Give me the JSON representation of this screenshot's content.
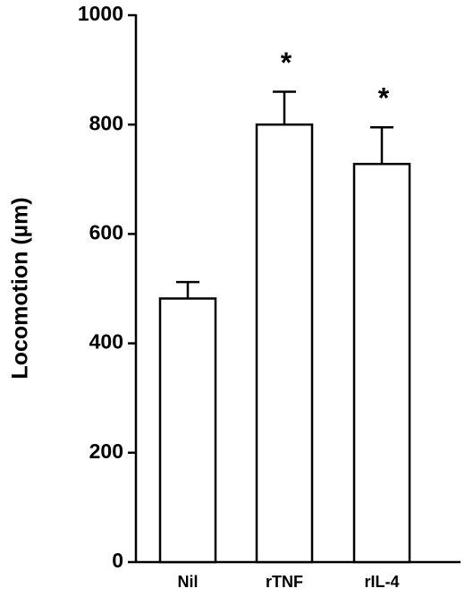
{
  "chart_data": {
    "type": "bar",
    "y_label": "Locomotion (µm)",
    "categories": [
      "Nil",
      "rTNF",
      "rIL-4"
    ],
    "values": [
      482,
      800,
      728
    ],
    "errors": [
      30,
      60,
      67
    ],
    "value_annotations": [
      null,
      "*",
      "*"
    ],
    "color": "#ffffff",
    "ylim": [
      0,
      1000
    ],
    "yticks": [
      0,
      200,
      400,
      600,
      800,
      1000
    ]
  }
}
